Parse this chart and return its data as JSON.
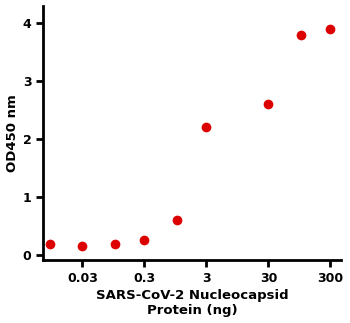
{
  "x_data": [
    0.009,
    0.03,
    0.1,
    0.3,
    1.0,
    3.0,
    30.0,
    100.0,
    300.0
  ],
  "y_data": [
    0.18,
    0.15,
    0.18,
    0.25,
    0.6,
    2.2,
    2.6,
    3.8,
    3.9
  ],
  "color": "#dd0000",
  "marker_size": 7,
  "xlabel_line1": "SARS-CoV-2 Nucleocapsid",
  "xlabel_line2": "Protein (ng)",
  "ylabel": "OD450 nm",
  "xlim_low": 0.007,
  "xlim_high": 450,
  "ylim": [
    -0.1,
    4.3
  ],
  "yticks": [
    0,
    1,
    2,
    3,
    4
  ],
  "xtick_positions": [
    0.03,
    0.3,
    3,
    30,
    300
  ],
  "xtick_labels": [
    "0.03",
    "0.3",
    "3",
    "30",
    "300"
  ],
  "label_fontsize": 9.5,
  "tick_fontsize": 9,
  "background_color": "#ffffff",
  "figure_background": "#ffffff"
}
